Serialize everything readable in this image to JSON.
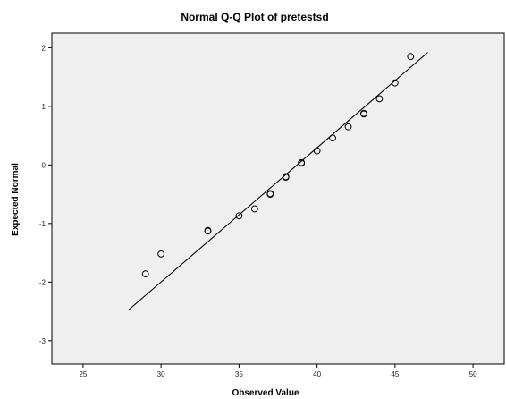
{
  "chart_data": {
    "type": "scatter",
    "title": "Normal Q-Q Plot of pretestsd",
    "xlabel": "Observed Value",
    "ylabel": "Expected Normal",
    "xlim": [
      23,
      52
    ],
    "ylim": [
      -3.4,
      2.25
    ],
    "x_ticks": [
      25,
      30,
      35,
      40,
      45,
      50
    ],
    "y_ticks": [
      -3,
      -2,
      -1,
      0,
      1,
      2
    ],
    "grid": false,
    "marker": "hollow-circle",
    "plot_background": "#efefef",
    "line_color": "#000000",
    "point_color": "#000000",
    "points": [
      {
        "x": 29,
        "y": -1.86
      },
      {
        "x": 30,
        "y": -1.52
      },
      {
        "x": 33,
        "y": -1.13
      },
      {
        "x": 33,
        "y": -1.12
      },
      {
        "x": 35,
        "y": -0.87
      },
      {
        "x": 36,
        "y": -0.75
      },
      {
        "x": 37,
        "y": -0.5
      },
      {
        "x": 37,
        "y": -0.49
      },
      {
        "x": 38,
        "y": -0.21
      },
      {
        "x": 38,
        "y": -0.2
      },
      {
        "x": 39,
        "y": 0.03
      },
      {
        "x": 39,
        "y": 0.04
      },
      {
        "x": 40,
        "y": 0.24
      },
      {
        "x": 41,
        "y": 0.46
      },
      {
        "x": 42,
        "y": 0.65
      },
      {
        "x": 43,
        "y": 0.87
      },
      {
        "x": 43,
        "y": 0.88
      },
      {
        "x": 44,
        "y": 1.13
      },
      {
        "x": 45,
        "y": 1.4
      },
      {
        "x": 46,
        "y": 1.85
      }
    ],
    "reference_line": {
      "x": [
        27.9,
        47.1
      ],
      "y": [
        -2.48,
        1.92
      ]
    }
  }
}
